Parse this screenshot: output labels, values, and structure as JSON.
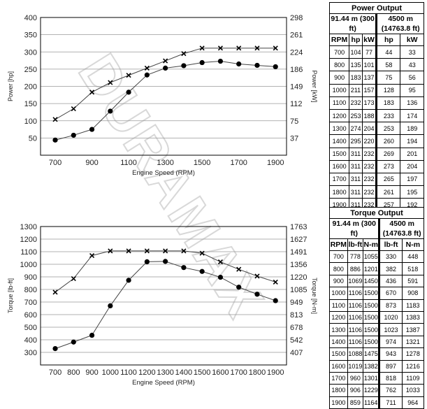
{
  "watermark_text": "DURAMAX",
  "colors": {
    "line": "#444444",
    "grid": "#999999",
    "marker": "#000000"
  },
  "power_table": {
    "title": "Power Output",
    "col1_header": "91.44 m (300 ft)",
    "col2_header": "4500 m (14763.8 ft)",
    "columns": [
      "RPM",
      "hp",
      "kW",
      "hp",
      "kW"
    ],
    "rows": [
      [
        "700",
        "104",
        "77",
        "44",
        "33"
      ],
      [
        "800",
        "135",
        "101",
        "58",
        "43"
      ],
      [
        "900",
        "183",
        "137",
        "75",
        "56"
      ],
      [
        "1000",
        "211",
        "157",
        "128",
        "95"
      ],
      [
        "1100",
        "232",
        "173",
        "183",
        "136"
      ],
      [
        "1200",
        "253",
        "188",
        "233",
        "174"
      ],
      [
        "1300",
        "274",
        "204",
        "253",
        "189"
      ],
      [
        "1400",
        "295",
        "220",
        "260",
        "194"
      ],
      [
        "1500",
        "311",
        "232",
        "269",
        "201"
      ],
      [
        "1600",
        "311",
        "232",
        "273",
        "204"
      ],
      [
        "1700",
        "311",
        "232",
        "265",
        "197"
      ],
      [
        "1800",
        "311",
        "232",
        "261",
        "195"
      ],
      [
        "1900",
        "311",
        "232",
        "257",
        "192"
      ]
    ]
  },
  "torque_table": {
    "title": "Torque Output",
    "col1_header": "91.44 m (300 ft)",
    "col2_header": "4500 m (14763.8 ft)",
    "columns": [
      "RPM",
      "lb-ft",
      "N-m",
      "lb-ft",
      "N-m"
    ],
    "rows": [
      [
        "700",
        "778",
        "1055",
        "330",
        "448"
      ],
      [
        "800",
        "886",
        "1201",
        "382",
        "518"
      ],
      [
        "900",
        "1069",
        "1450",
        "436",
        "591"
      ],
      [
        "1000",
        "1106",
        "1500",
        "670",
        "908"
      ],
      [
        "1100",
        "1106",
        "1500",
        "873",
        "1183"
      ],
      [
        "1200",
        "1106",
        "1500",
        "1020",
        "1383"
      ],
      [
        "1300",
        "1106",
        "1500",
        "1023",
        "1387"
      ],
      [
        "1400",
        "1106",
        "1500",
        "974",
        "1321"
      ],
      [
        "1500",
        "1088",
        "1475",
        "943",
        "1278"
      ],
      [
        "1600",
        "1019",
        "1382",
        "897",
        "1216"
      ],
      [
        "1700",
        "960",
        "1301",
        "818",
        "1109"
      ],
      [
        "1800",
        "906",
        "1229",
        "762",
        "1033"
      ],
      [
        "1900",
        "859",
        "1164",
        "711",
        "964"
      ]
    ]
  },
  "chart_data": [
    {
      "type": "line",
      "xlabel": "Engine Speed (RPM)",
      "ylabel": "Power [hp]",
      "y2label": "Power [kW]",
      "x": [
        700,
        800,
        900,
        1000,
        1100,
        1200,
        1300,
        1400,
        1500,
        1600,
        1700,
        1800,
        1900
      ],
      "xticks": [
        700,
        900,
        1100,
        1300,
        1500,
        1700,
        1900
      ],
      "xlim": [
        620,
        1960
      ],
      "ylim": [
        0,
        400
      ],
      "yticks": [
        50,
        100,
        150,
        200,
        250,
        300,
        350,
        400
      ],
      "y2ticks": [
        "37",
        "75",
        "112",
        "149",
        "186",
        "224",
        "261",
        "298"
      ],
      "grid": true,
      "series": [
        {
          "marker": "x",
          "values": [
            104,
            135,
            183,
            211,
            232,
            253,
            274,
            295,
            311,
            311,
            311,
            311,
            311
          ]
        },
        {
          "marker": "circle",
          "values": [
            44,
            58,
            75,
            128,
            183,
            233,
            253,
            260,
            269,
            273,
            265,
            261,
            257
          ]
        }
      ]
    },
    {
      "type": "line",
      "xlabel": "Engine Speed (RPM)",
      "ylabel": "Torque [lb-ft]",
      "y2label": "Torque [N-m]",
      "x": [
        700,
        800,
        900,
        1000,
        1100,
        1200,
        1300,
        1400,
        1500,
        1600,
        1700,
        1800,
        1900
      ],
      "xticks": [
        700,
        800,
        900,
        1000,
        1100,
        1200,
        1300,
        1400,
        1500,
        1600,
        1700,
        1800,
        1900
      ],
      "xlim": [
        620,
        1960
      ],
      "ylim": [
        200,
        1300
      ],
      "yticks": [
        300,
        400,
        500,
        600,
        700,
        800,
        900,
        1000,
        1100,
        1200,
        1300
      ],
      "y2ticks": [
        "407",
        "542",
        "678",
        "813",
        "949",
        "1085",
        "1220",
        "1356",
        "1491",
        "1627",
        "1763"
      ],
      "grid": true,
      "series": [
        {
          "marker": "x",
          "values": [
            778,
            886,
            1069,
            1106,
            1106,
            1106,
            1106,
            1106,
            1088,
            1019,
            960,
            906,
            859
          ]
        },
        {
          "marker": "circle",
          "values": [
            330,
            382,
            436,
            670,
            873,
            1020,
            1023,
            974,
            943,
            897,
            818,
            762,
            711
          ]
        }
      ]
    }
  ]
}
